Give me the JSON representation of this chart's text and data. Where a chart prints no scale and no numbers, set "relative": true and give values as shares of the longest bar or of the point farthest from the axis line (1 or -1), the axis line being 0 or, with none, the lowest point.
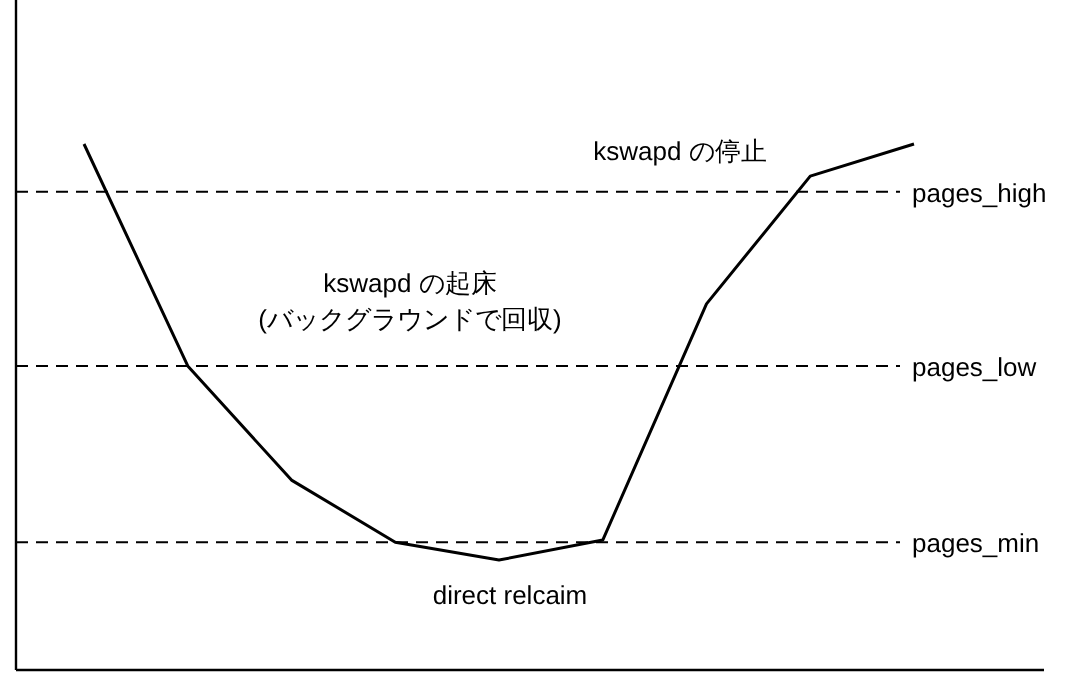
{
  "chart_data": {
    "type": "line",
    "relative": true,
    "categories": [
      null,
      null,
      null,
      null,
      null,
      null,
      null,
      null,
      null
    ],
    "values": [
      1,
      0.578,
      0.361,
      0.243,
      0.209,
      0.247,
      0.696,
      0.939,
      1
    ],
    "color": "#000000",
    "ref_lines": [
      {
        "axis": "y",
        "value": 0.909,
        "label": "pages_high",
        "color": "#000000",
        "line_style": "dashed"
      },
      {
        "axis": "y",
        "value": 0.578,
        "label": "pages_low",
        "color": "#000000",
        "line_style": "dashed"
      },
      {
        "axis": "y",
        "value": 0.243,
        "label": "pages_min",
        "color": "#000000",
        "line_style": "dashed"
      }
    ],
    "annotations": [
      "kswapd の停止",
      "kswapd の起床",
      "(バックグラウンドで回収)",
      "direct relcaim"
    ]
  }
}
